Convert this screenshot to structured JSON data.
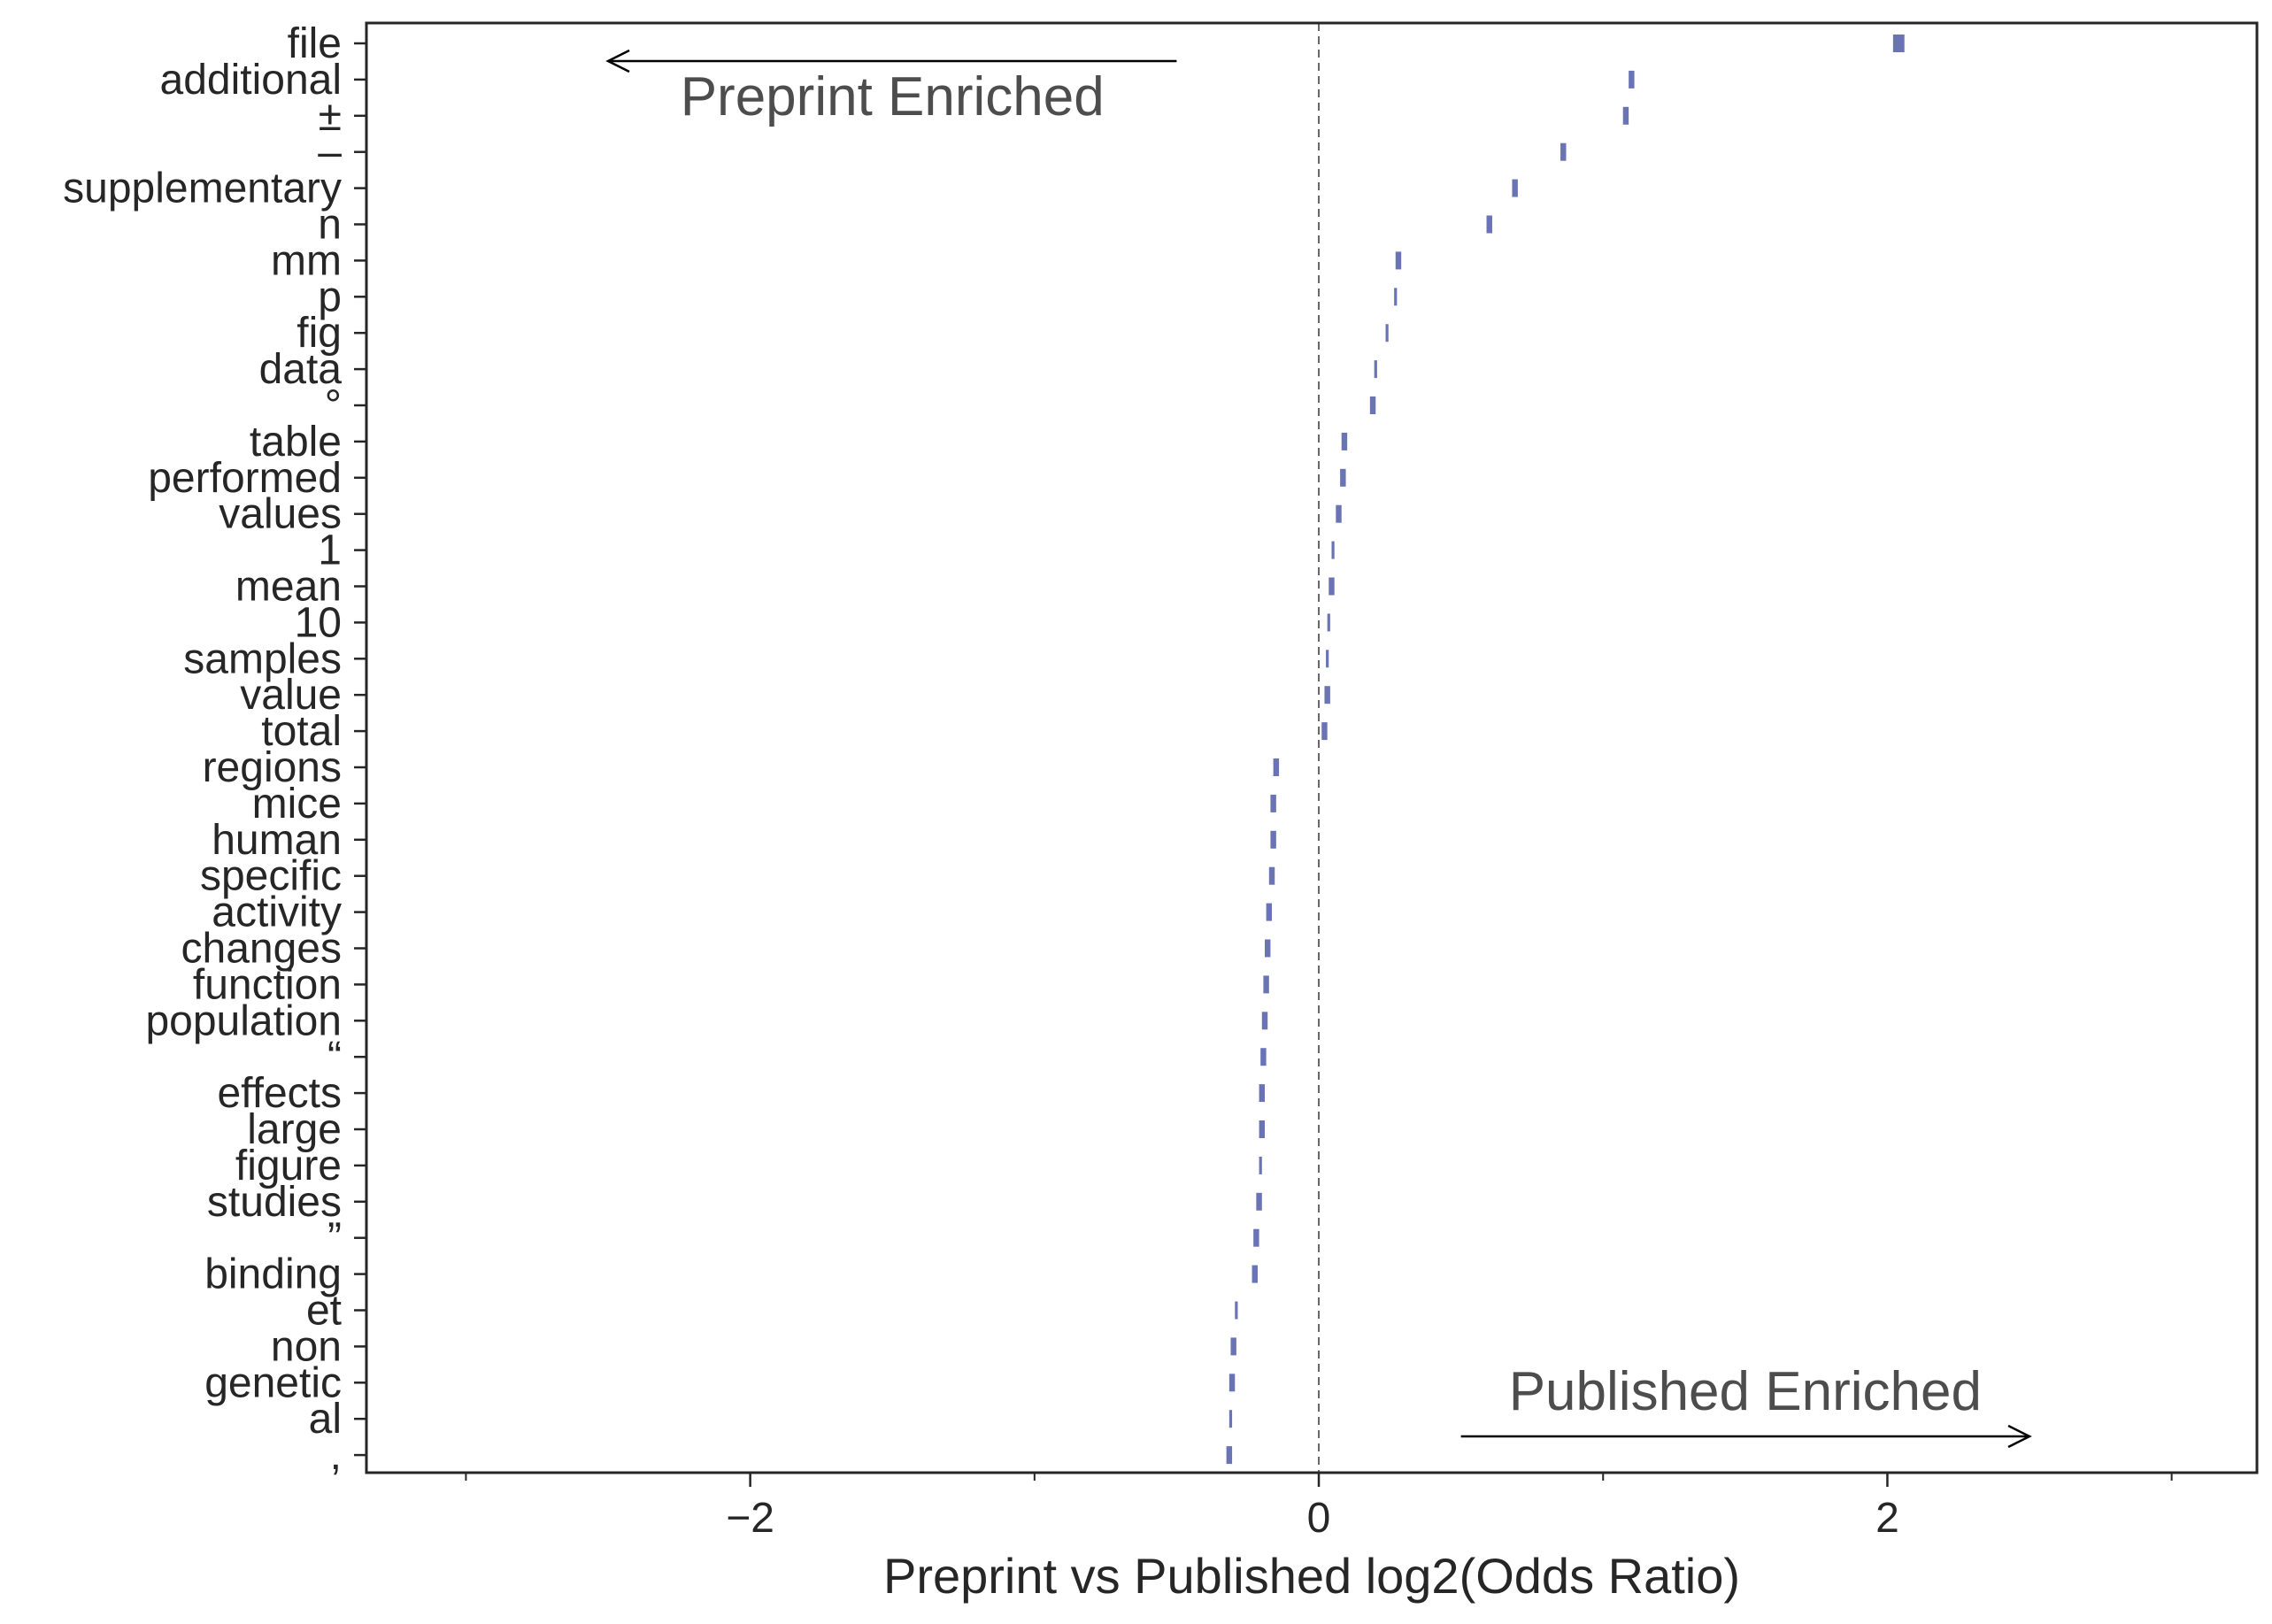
{
  "chart_data": {
    "type": "interval",
    "xlabel": "Preprint vs Published log2(Odds Ratio)",
    "xlim": [
      -3.35,
      3.3
    ],
    "xticks": [
      -2,
      0,
      2
    ],
    "xtick_labels": [
      "−2",
      "0",
      "2"
    ],
    "minor_xticks": [
      -3,
      -1,
      1,
      3
    ],
    "reference_line_x": 0,
    "grid": false,
    "color": "#6a74b5",
    "annotations": [
      {
        "text": "Preprint Enriched",
        "arrow_from_x": -0.5,
        "arrow_to_x": -2.5,
        "position": "top-left"
      },
      {
        "text": "Published Enriched",
        "arrow_from_x": 0.5,
        "arrow_to_x": 2.5,
        "position": "bottom-right"
      }
    ],
    "categories": [
      "file",
      "additional",
      "±",
      "–",
      "supplementary",
      "n",
      "mm",
      "p",
      "fig",
      "data",
      "°",
      "table",
      "performed",
      "values",
      "1",
      "mean",
      "10",
      "samples",
      "value",
      "total",
      "regions",
      "mice",
      "human",
      "specific",
      "activity",
      "changes",
      "function",
      "population",
      "“",
      "effects",
      "large",
      "figure",
      "studies",
      "”",
      "binding",
      "et",
      "non",
      "genetic",
      "al",
      ","
    ],
    "values": [
      2.04,
      1.1,
      1.08,
      0.86,
      0.69,
      0.6,
      0.28,
      0.27,
      0.24,
      0.2,
      0.19,
      0.09,
      0.085,
      0.07,
      0.05,
      0.045,
      0.035,
      0.03,
      0.03,
      0.02,
      -0.15,
      -0.16,
      -0.16,
      -0.165,
      -0.175,
      -0.18,
      -0.185,
      -0.19,
      -0.195,
      -0.2,
      -0.2,
      -0.205,
      -0.21,
      -0.22,
      -0.225,
      -0.29,
      -0.3,
      -0.305,
      -0.31,
      -0.315
    ],
    "ci_low": [
      2.02,
      1.09,
      1.07,
      0.85,
      0.68,
      0.59,
      0.27,
      0.265,
      0.235,
      0.195,
      0.18,
      0.08,
      0.075,
      0.06,
      0.045,
      0.035,
      0.03,
      0.025,
      0.02,
      0.01,
      -0.16,
      -0.17,
      -0.17,
      -0.175,
      -0.185,
      -0.19,
      -0.195,
      -0.2,
      -0.205,
      -0.21,
      -0.21,
      -0.21,
      -0.22,
      -0.23,
      -0.235,
      -0.295,
      -0.31,
      -0.315,
      -0.315,
      -0.325
    ],
    "ci_high": [
      2.06,
      1.11,
      1.09,
      0.87,
      0.7,
      0.61,
      0.29,
      0.275,
      0.245,
      0.205,
      0.2,
      0.1,
      0.095,
      0.08,
      0.055,
      0.055,
      0.04,
      0.035,
      0.04,
      0.03,
      -0.14,
      -0.15,
      -0.15,
      -0.155,
      -0.165,
      -0.17,
      -0.175,
      -0.18,
      -0.185,
      -0.19,
      -0.19,
      -0.2,
      -0.2,
      -0.21,
      -0.215,
      -0.285,
      -0.29,
      -0.295,
      -0.305,
      -0.305
    ]
  }
}
